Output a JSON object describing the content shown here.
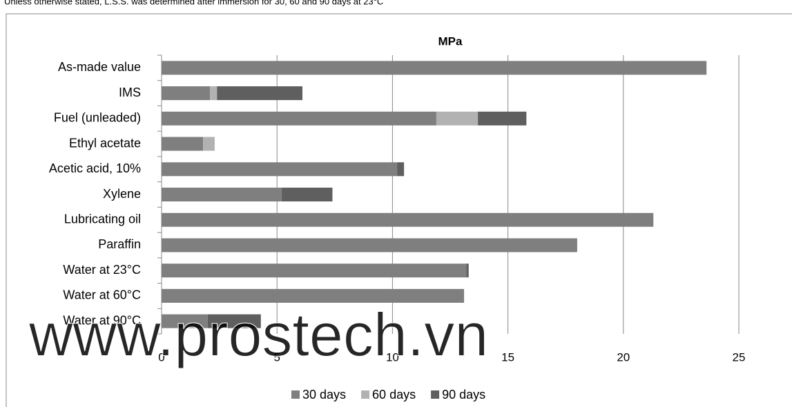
{
  "chart_data": {
    "type": "stacked-barh",
    "note": "Unless otherwise stated, L.S.S. was determined after immersion for 30, 60 and 90 days at 23°C",
    "title": "MPa",
    "watermark": "www.prostech.vn",
    "categories": [
      "As-made value",
      "IMS",
      "Fuel (unleaded)",
      "Ethyl acetate",
      "Acetic acid, 10%",
      "Xylene",
      "Lubricating oil",
      "Paraffin",
      "Water at 23°C",
      "Water at 60°C",
      "Water at 90°C"
    ],
    "series": [
      {
        "name": "30 days",
        "color": "#7f7f7f",
        "values": [
          23.6,
          2.1,
          11.9,
          1.8,
          10.2,
          5.2,
          21.3,
          18.0,
          13.2,
          13.1,
          2.0
        ]
      },
      {
        "name": "60 days",
        "color": "#b2b2b2",
        "values": [
          0,
          0.3,
          1.8,
          0.5,
          0,
          0,
          0,
          0,
          0,
          0,
          0
        ]
      },
      {
        "name": "90 days",
        "color": "#5f5f5f",
        "values": [
          0,
          3.7,
          2.1,
          0,
          0.3,
          2.2,
          0,
          0,
          0.1,
          0,
          2.3
        ]
      }
    ],
    "xlim": [
      0,
      25
    ],
    "xticks": [
      0,
      5,
      10,
      15,
      20,
      25
    ],
    "grid": true,
    "legend": "bottom"
  }
}
